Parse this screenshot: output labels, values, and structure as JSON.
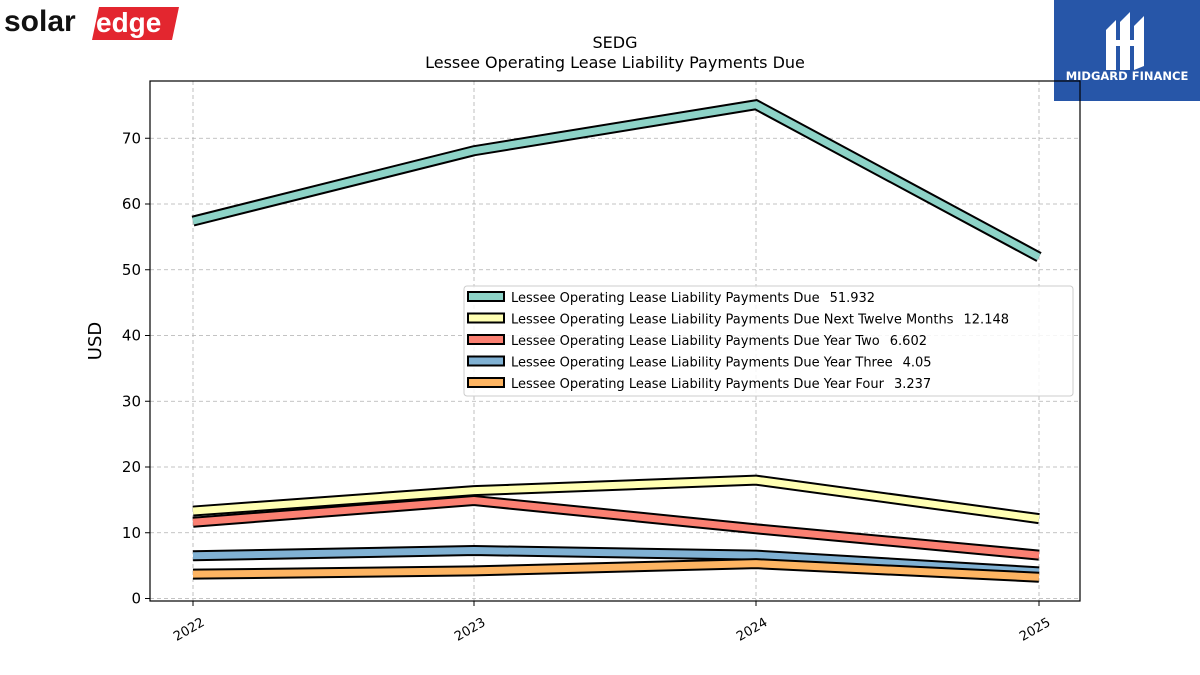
{
  "logos": {
    "left_brand": "solaredge",
    "left_brand_part1": "solar",
    "left_brand_part2": "edge",
    "right_brand": "MIDGARD FINANCE",
    "left_brand_color": "#e3262f",
    "right_brand_bg": "#2756a8"
  },
  "chart_data": {
    "type": "line",
    "title": "SEDG",
    "subtitle": "Lessee Operating Lease Liability Payments Due",
    "xlabel": "",
    "ylabel": "USD",
    "categories": [
      "2022",
      "2023",
      "2024",
      "2025"
    ],
    "ylim": [
      -0.5,
      78.5
    ],
    "yticks": [
      0,
      10,
      20,
      30,
      40,
      50,
      60,
      70
    ],
    "grid": true,
    "legend_position": "center-right",
    "series": [
      {
        "name": "Lessee Operating Lease Liability Payments Due",
        "legend_value": "51.932",
        "values": [
          57.4,
          68.1,
          75.1,
          51.932
        ],
        "color": "#8dd3c7"
      },
      {
        "name": "Lessee Operating Lease Liability Payments Due Next Twelve Months",
        "legend_value": "12.148",
        "values": [
          13.3,
          16.4,
          18.0,
          12.148
        ],
        "color": "#ffffb3"
      },
      {
        "name": "Lessee Operating Lease Liability Payments Due Year Two",
        "legend_value": "6.602",
        "values": [
          11.6,
          14.9,
          10.6,
          6.602
        ],
        "color": "#fb8072"
      },
      {
        "name": "Lessee Operating Lease Liability Payments Due Year Three",
        "legend_value": "4.05",
        "values": [
          6.5,
          7.3,
          6.6,
          4.05
        ],
        "color": "#80b1d3"
      },
      {
        "name": "Lessee Operating Lease Liability Payments Due Year Four",
        "legend_value": "3.237",
        "values": [
          3.7,
          4.2,
          5.3,
          3.237
        ],
        "color": "#fdb462"
      }
    ]
  }
}
